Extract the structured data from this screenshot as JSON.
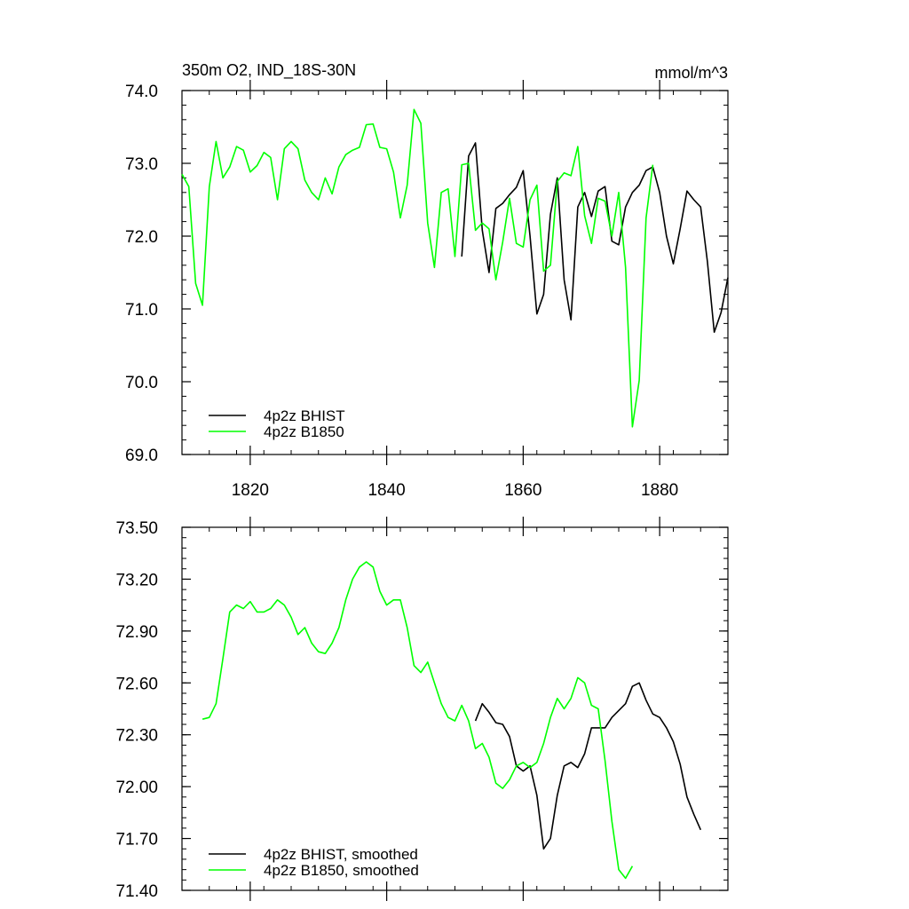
{
  "chart_data": [
    {
      "type": "line",
      "title": "350m O2, IND_18S-30N",
      "units": "mmol/m^3",
      "xlim": [
        1810,
        1890
      ],
      "ylim": [
        69.0,
        74.0
      ],
      "yticks": [
        69.0,
        70.0,
        71.0,
        72.0,
        73.0,
        74.0
      ],
      "ytick_labels": [
        "69.0",
        "70.0",
        "71.0",
        "72.0",
        "73.0",
        "74.0"
      ],
      "xticks": [
        1820,
        1840,
        1860,
        1880
      ],
      "xtick_labels": [
        "1820",
        "1840",
        "1860",
        "1880"
      ],
      "show_xtick_labels": true,
      "legend_position": "bottom-left",
      "series": [
        {
          "name": "4p2z BHIST",
          "color": "#000000",
          "x_start": 1851,
          "values": [
            71.72,
            73.1,
            73.28,
            72.08,
            71.5,
            72.38,
            72.45,
            72.57,
            72.67,
            72.9,
            72.0,
            70.93,
            71.2,
            72.3,
            72.8,
            71.4,
            70.85,
            72.4,
            72.6,
            72.27,
            72.62,
            72.68,
            71.93,
            71.88,
            72.4,
            72.6,
            72.7,
            72.9,
            72.95,
            72.6,
            72.0,
            71.62,
            72.1,
            72.62,
            72.5,
            72.4,
            71.65,
            70.68,
            70.95,
            71.43
          ]
        },
        {
          "name": "4p2z B1850",
          "color": "#00ff00",
          "x_start": 1810,
          "values": [
            72.85,
            72.68,
            71.35,
            71.05,
            72.68,
            73.3,
            72.8,
            72.95,
            73.23,
            73.18,
            72.88,
            72.97,
            73.15,
            73.08,
            72.5,
            73.2,
            73.3,
            73.2,
            72.77,
            72.6,
            72.5,
            72.8,
            72.58,
            72.95,
            73.12,
            73.18,
            73.22,
            73.53,
            73.54,
            73.22,
            73.2,
            72.88,
            72.25,
            72.7,
            73.74,
            73.55,
            72.18,
            71.57,
            72.6,
            72.65,
            71.72,
            72.98,
            73.0,
            72.08,
            72.18,
            72.1,
            71.4,
            71.92,
            72.52,
            71.9,
            71.85,
            72.5,
            72.7,
            71.52,
            71.6,
            72.75,
            72.87,
            72.83,
            73.23,
            72.28,
            71.9,
            72.52,
            72.48,
            72.0,
            72.6,
            71.57,
            69.38,
            70.02,
            72.25,
            72.98
          ]
        }
      ]
    },
    {
      "type": "line",
      "xlim": [
        1810,
        1890
      ],
      "ylim": [
        71.4,
        73.5
      ],
      "yticks": [
        71.4,
        71.7,
        72.0,
        72.3,
        72.6,
        72.9,
        73.2,
        73.5
      ],
      "ytick_labels": [
        "71.40",
        "71.70",
        "72.00",
        "72.30",
        "72.60",
        "72.90",
        "73.20",
        "73.50"
      ],
      "xticks": [
        1820,
        1840,
        1860,
        1880
      ],
      "show_xtick_labels": false,
      "legend_position": "bottom-left",
      "series": [
        {
          "name": "4p2z BHIST, smoothed",
          "color": "#000000",
          "x_start": 1853,
          "values": [
            72.38,
            72.48,
            72.43,
            72.37,
            72.36,
            72.29,
            72.12,
            72.09,
            72.12,
            71.95,
            71.64,
            71.7,
            71.95,
            72.12,
            72.14,
            72.11,
            72.19,
            72.34,
            72.34,
            72.34,
            72.4,
            72.44,
            72.48,
            72.58,
            72.6,
            72.5,
            72.42,
            72.4,
            72.34,
            72.26,
            72.13,
            71.94,
            71.84,
            71.75
          ]
        },
        {
          "name": "4p2z B1850, smoothed",
          "color": "#00ff00",
          "x_start": 1813,
          "values": [
            72.39,
            72.4,
            72.48,
            72.74,
            73.01,
            73.05,
            73.03,
            73.07,
            73.01,
            73.01,
            73.03,
            73.08,
            73.05,
            72.98,
            72.88,
            72.92,
            72.83,
            72.78,
            72.77,
            72.83,
            72.92,
            73.08,
            73.2,
            73.27,
            73.3,
            73.27,
            73.13,
            73.05,
            73.08,
            73.08,
            72.92,
            72.7,
            72.66,
            72.72,
            72.6,
            72.48,
            72.4,
            72.38,
            72.47,
            72.38,
            72.22,
            72.25,
            72.17,
            72.02,
            71.99,
            72.04,
            72.12,
            72.14,
            72.11,
            72.14,
            72.25,
            72.4,
            72.51,
            72.45,
            72.51,
            72.63,
            72.6,
            72.47,
            72.45,
            72.15,
            71.8,
            71.52,
            71.47,
            71.54
          ]
        }
      ]
    }
  ]
}
